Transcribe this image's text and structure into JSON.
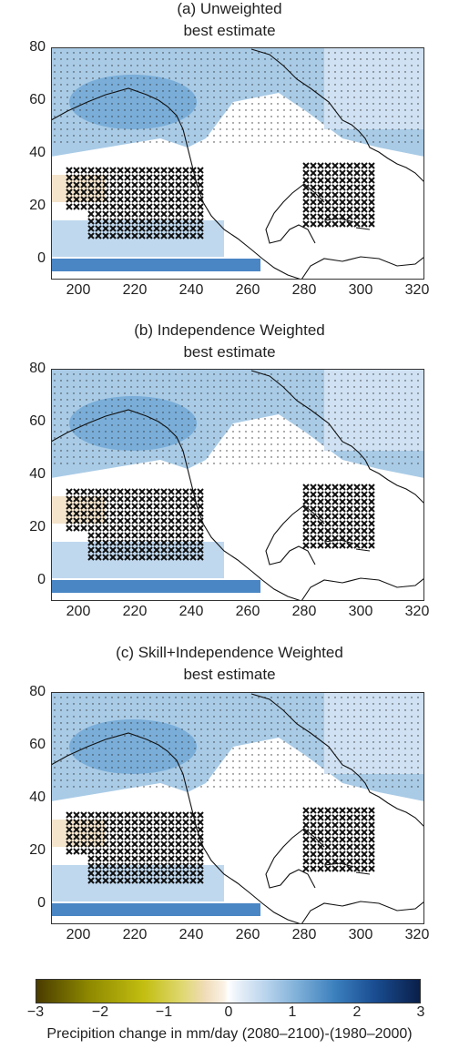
{
  "panels": [
    {
      "title_line1": "(a) Unweighted",
      "title_line2": "best estimate"
    },
    {
      "title_line1": "(b) Independence Weighted",
      "title_line2": "best estimate"
    },
    {
      "title_line1": "(c) Skill+Independence Weighted",
      "title_line2": "best estimate"
    }
  ],
  "axes": {
    "y_ticks": [
      "80",
      "60",
      "40",
      "20",
      "0"
    ],
    "x_ticks": [
      "200",
      "220",
      "240",
      "260",
      "280",
      "300",
      "320"
    ],
    "x_range": [
      190,
      322
    ],
    "y_range": [
      0,
      80
    ]
  },
  "colorbar": {
    "ticks": [
      "−3",
      "−2",
      "−1",
      "0",
      "1",
      "2",
      "3"
    ],
    "label": "Precipition change in mm/day (2080–2100)-(1980–2000)",
    "range": [
      -3,
      3
    ],
    "colors": {
      "negative": "#8f8a00",
      "zero": "#ffffff",
      "positive": "#1a4e93"
    }
  },
  "legend_markers": {
    "stipple": "dot",
    "cross": "x"
  }
}
